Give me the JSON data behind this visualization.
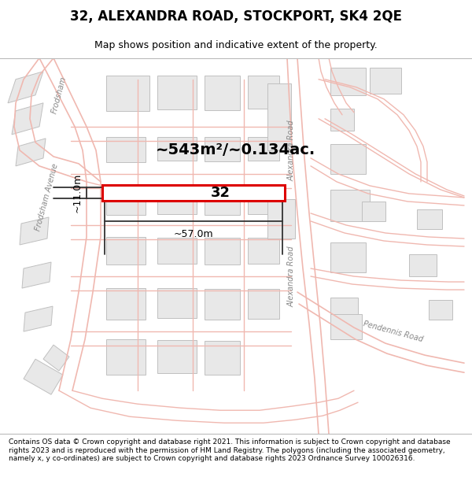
{
  "title": "32, ALEXANDRA ROAD, STOCKPORT, SK4 2QE",
  "subtitle": "Map shows position and indicative extent of the property.",
  "footer": "Contains OS data © Crown copyright and database right 2021. This information is subject to Crown copyright and database rights 2023 and is reproduced with the permission of HM Land Registry. The polygons (including the associated geometry, namely x, y co-ordinates) are subject to Crown copyright and database rights 2023 Ordnance Survey 100026316.",
  "area_label": "~543m²/~0.134ac.",
  "width_label": "~57.0m",
  "height_label": "~11.0m",
  "plot_number": "32",
  "map_bg": "#ffffff",
  "building_fill": "#e8e8e8",
  "building_edge": "#c0c0c0",
  "highlight_fill": "#ffffff",
  "highlight_edge": "#dd0000",
  "road_line_color": "#f0b8b0",
  "road_line_color2": "#e8a090",
  "dim_line_color": "#333333",
  "text_color": "#000000",
  "road_label_color": "#888888",
  "title_fontsize": 12,
  "subtitle_fontsize": 9,
  "footer_fontsize": 6.5
}
